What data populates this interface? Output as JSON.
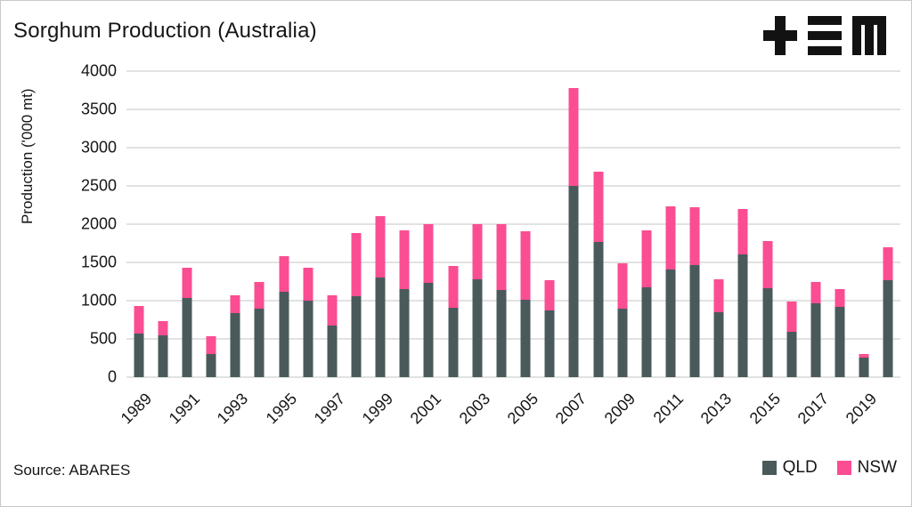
{
  "title": "Sorghum Production (Australia)",
  "source": "Source: ABARES",
  "logo_name": "tem-logo",
  "colors": {
    "qld": "#4A5A5B",
    "nsw": "#FB4D92",
    "grid": "#e2e2e2",
    "text": "#161616"
  },
  "legend": [
    {
      "label": "QLD",
      "color": "#4A5A5B"
    },
    {
      "label": "NSW",
      "color": "#FB4D92"
    }
  ],
  "chart_data": {
    "type": "bar",
    "stacked": true,
    "title": "Sorghum Production (Australia)",
    "xlabel": "",
    "ylabel": "Production ('000 mt)",
    "ylim": [
      0,
      4000
    ],
    "ytick_step": 500,
    "yticks": [
      0,
      500,
      1000,
      1500,
      2000,
      2500,
      3000,
      3500,
      4000
    ],
    "grid": "horizontal",
    "legend_position": "bottom-right",
    "categories": [
      1989,
      1990,
      1991,
      1992,
      1993,
      1994,
      1995,
      1996,
      1997,
      1998,
      1999,
      2000,
      2001,
      2002,
      2003,
      2004,
      2005,
      2006,
      2007,
      2008,
      2009,
      2010,
      2011,
      2012,
      2013,
      2014,
      2015,
      2016,
      2017,
      2018,
      2019,
      2020
    ],
    "xtick_labels": [
      "1989",
      "1991",
      "1993",
      "1995",
      "1997",
      "1999",
      "2001",
      "2003",
      "2005",
      "2007",
      "2009",
      "2011",
      "2013",
      "2015",
      "2017",
      "2019"
    ],
    "series": [
      {
        "name": "QLD",
        "color": "#4A5A5B",
        "values": [
          570,
          545,
          1035,
          300,
          835,
          900,
          1115,
          1000,
          680,
          1055,
          1300,
          1150,
          1230,
          910,
          1275,
          1135,
          1010,
          870,
          2500,
          1765,
          900,
          1170,
          1410,
          1470,
          850,
          1600,
          1165,
          590,
          965,
          920,
          255,
          1265
        ]
      },
      {
        "name": "NSW",
        "color": "#FB4D92",
        "values": [
          360,
          190,
          390,
          235,
          240,
          350,
          470,
          425,
          390,
          825,
          810,
          765,
          770,
          540,
          725,
          870,
          895,
          400,
          1280,
          925,
          590,
          750,
          820,
          750,
          430,
          600,
          615,
          400,
          280,
          230,
          45,
          435
        ]
      }
    ]
  }
}
